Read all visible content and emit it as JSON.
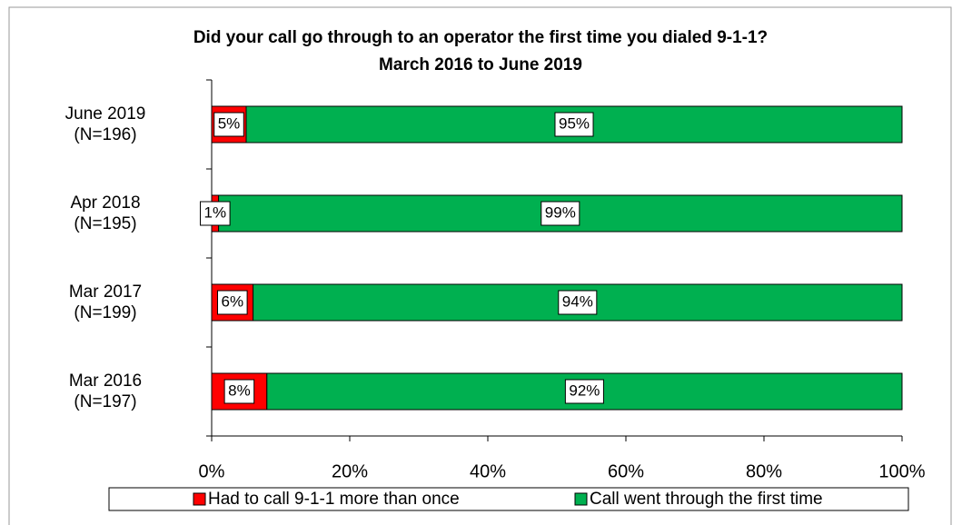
{
  "chart_data": {
    "type": "stacked-bar-horizontal",
    "title": "Did your call go through to an operator the first time you dialed 9-1-1?",
    "subtitle": "March 2016 to June 2019",
    "categories": [
      "June 2019\n(N=196)",
      "Apr 2018\n(N=195)",
      "Mar 2017\n(N=199)",
      "Mar 2016\n(N=197)"
    ],
    "series": [
      {
        "name": "Had to call 9-1-1 more than once",
        "color": "#ff0000",
        "values": [
          5,
          1,
          6,
          8
        ],
        "value_labels": [
          "5%",
          "1%",
          "6%",
          "8%"
        ]
      },
      {
        "name": "Call went through the first time",
        "color": "#00b050",
        "values": [
          95,
          99,
          94,
          92
        ],
        "value_labels": [
          "95%",
          "99%",
          "94%",
          "92%"
        ]
      }
    ],
    "xlim": [
      0,
      100
    ],
    "xticks": [
      {
        "value": 0,
        "label": "0%"
      },
      {
        "value": 20,
        "label": "20%"
      },
      {
        "value": 40,
        "label": "40%"
      },
      {
        "value": 60,
        "label": "60%"
      },
      {
        "value": 80,
        "label": "80%"
      },
      {
        "value": 100,
        "label": "100%"
      }
    ],
    "legend": "bottom"
  }
}
